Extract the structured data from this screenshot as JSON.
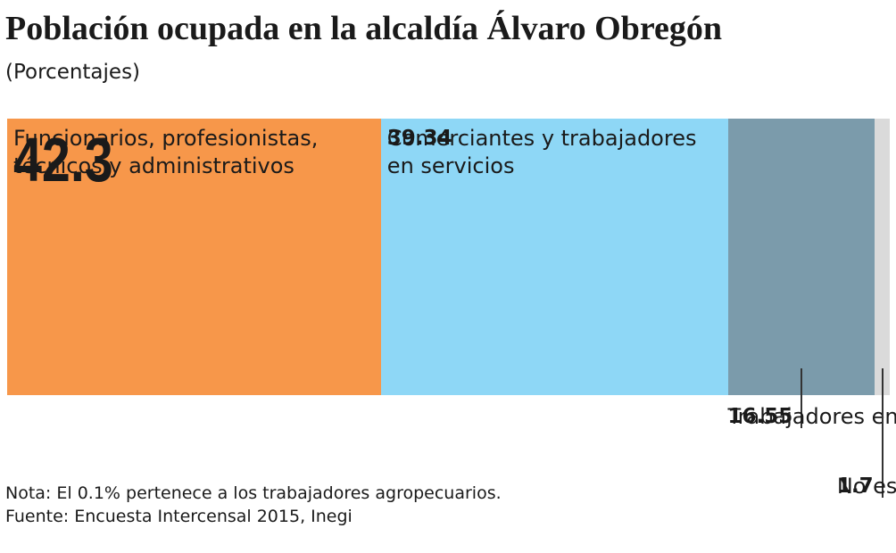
{
  "chart_data": {
    "type": "stackedbar",
    "title": "Población ocupada en la alcaldía Álvaro Obregón",
    "subtitle": "(Porcentajes)",
    "series": [
      {
        "name": "Funcionarios, profesionistas, técnicos y administrativos",
        "color": "#f7974a",
        "values": [
          42.3
        ]
      },
      {
        "name": "Comerciantes y trabajadores en servicios",
        "color": "#8ed7f6",
        "values": [
          39.34
        ]
      },
      {
        "name": "Trabajadores en la industria",
        "color": "#7b9bab",
        "values": [
          16.55
        ]
      },
      {
        "name": "No especificado",
        "color": "#dadada",
        "values": [
          1.7
        ]
      }
    ],
    "notes": [
      "Nota: El 0.1% pertenece a los trabajadores agropecuarios.",
      "Fuente: Encuesta Intercensal 2015, Inegi"
    ]
  }
}
